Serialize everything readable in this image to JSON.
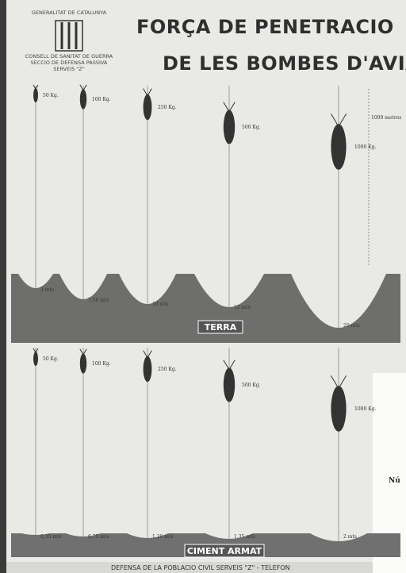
{
  "header": {
    "org": "GENERALITAT DE CATALUNYA",
    "lines": [
      "CONSELL DE SANITAT DE GUERRA",
      "SECCIO DE DEFENSA PASSIVA",
      "SERVEIS \"Z\""
    ]
  },
  "title": [
    "FORÇA DE PENETRACIO",
    "DE LES BOMBES D'AVIACIO"
  ],
  "scale_label": "1000 metres",
  "sections": [
    {
      "label": "TERRA",
      "bombs": [
        {
          "weight": "50 Kg.",
          "depth": "3 mts"
        },
        {
          "weight": "100 Kg.",
          "depth": "7,50 mts"
        },
        {
          "weight": "250 Kg.",
          "depth": "10 mts"
        },
        {
          "weight": "500 Kg.",
          "depth": "12 mts"
        },
        {
          "weight": "1000 Kg.",
          "depth": "20 mts"
        }
      ]
    },
    {
      "label": "CIMENT ARMAT",
      "bombs": [
        {
          "weight": "50 Kg.",
          "depth": "0,35 mts"
        },
        {
          "weight": "100 Kg.",
          "depth": "0,75 mts"
        },
        {
          "weight": "250 Kg.",
          "depth": "1,20 mts"
        },
        {
          "weight": "500 Kg.",
          "depth": "1,35 mts"
        },
        {
          "weight": "1000 Kg.",
          "depth": "2 mts"
        }
      ]
    }
  ],
  "footer": "DEFENSA DE LA POBLACIO CIVIL SERVEIS \"Z\" - TELEFON",
  "side_note": "Nú"
}
